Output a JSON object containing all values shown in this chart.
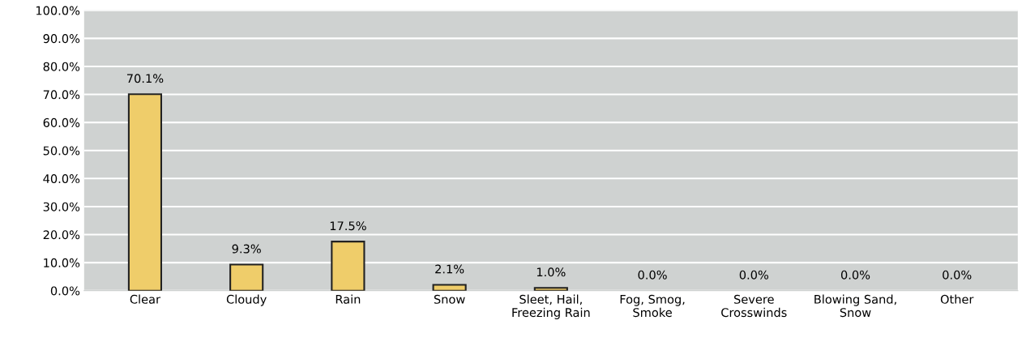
{
  "chart_data": {
    "type": "bar",
    "categories": [
      "Clear",
      "Cloudy",
      "Rain",
      "Snow",
      "Sleet, Hail,\nFreezing Rain",
      "Fog, Smog,\nSmoke",
      "Severe\nCrosswinds",
      "Blowing Sand,\nSnow",
      "Other"
    ],
    "values": [
      70.1,
      9.3,
      17.5,
      2.1,
      1.0,
      0.0,
      0.0,
      0.0,
      0.0
    ],
    "value_labels": [
      "70.1%",
      "9.3%",
      "17.5%",
      "2.1%",
      "1.0%",
      "0.0%",
      "0.0%",
      "0.0%",
      "0.0%"
    ],
    "color": "#efcd6a",
    "ylim": [
      0,
      100
    ],
    "yticks": [
      {
        "value": 0,
        "label": "0.0%"
      },
      {
        "value": 10,
        "label": "10.0%"
      },
      {
        "value": 20,
        "label": "20.0%"
      },
      {
        "value": 30,
        "label": "30.0%"
      },
      {
        "value": 40,
        "label": "40.0%"
      },
      {
        "value": 50,
        "label": "50.0%"
      },
      {
        "value": 60,
        "label": "60.0%"
      },
      {
        "value": 70,
        "label": "70.0%"
      },
      {
        "value": 80,
        "label": "80.0%"
      },
      {
        "value": 90,
        "label": "90.0%"
      },
      {
        "value": 100,
        "label": "100.0%"
      }
    ],
    "grid": "y"
  }
}
